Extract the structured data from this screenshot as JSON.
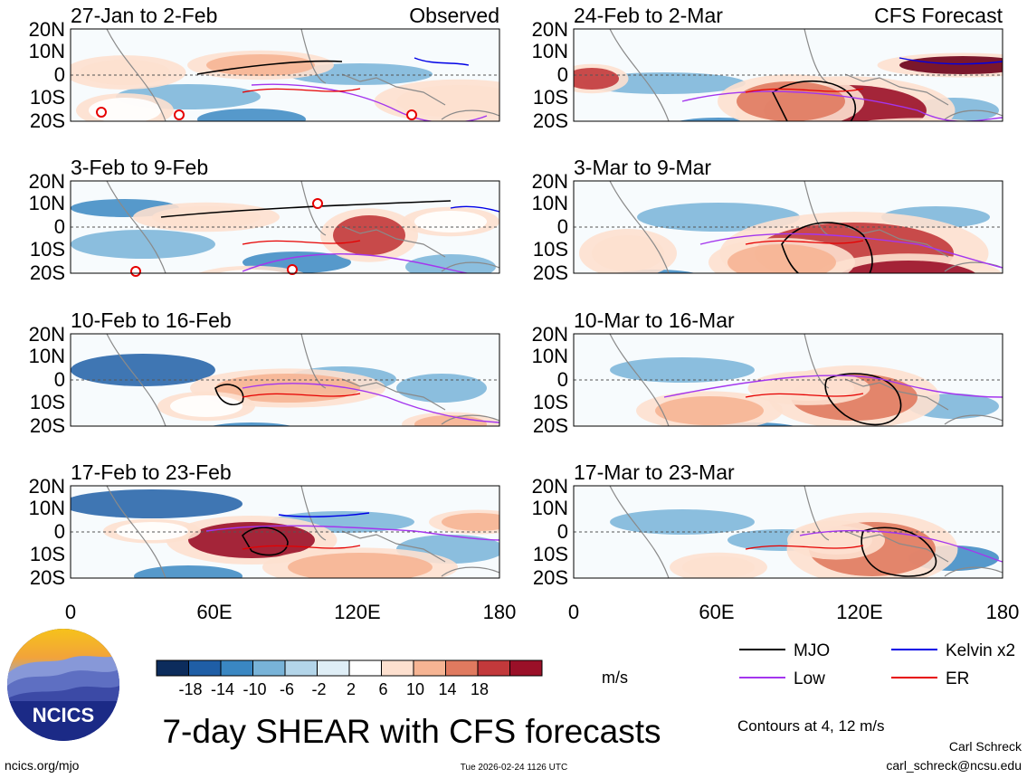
{
  "chart_data": {
    "type": "heatmap",
    "title": "7-day SHEAR with CFS forecasts",
    "units": "m/s",
    "contour_note": "Contours at 4, 12 m/s",
    "lat_ticks": [
      "20N",
      "10N",
      "0",
      "10S",
      "20S"
    ],
    "lon_ticks": [
      "0",
      "60E",
      "120E",
      "180"
    ],
    "lon_range": [
      0,
      180
    ],
    "lat_range": [
      -20,
      20
    ],
    "colorbar": {
      "ticks": [
        "-18",
        "-14",
        "-10",
        "-6",
        "-2",
        "2",
        "6",
        "10",
        "14",
        "18"
      ],
      "colors": [
        "#0c2c5c",
        "#1f5ea6",
        "#3a87c2",
        "#78b3d8",
        "#b3d5e9",
        "#dfeef6",
        "#ffffff",
        "#fde0cf",
        "#f6b493",
        "#e07a5f",
        "#c2393b",
        "#9a1028",
        "#6b0019"
      ]
    },
    "legend": [
      {
        "label": "MJO",
        "color": "#000000"
      },
      {
        "label": "Kelvin x2",
        "color": "#0000e6"
      },
      {
        "label": "Low",
        "color": "#a436ee"
      },
      {
        "label": "ER",
        "color": "#e60000"
      }
    ],
    "panels": [
      {
        "period": "27-Jan to 2-Feb",
        "tag": "Observed"
      },
      {
        "period": "24-Feb to 2-Mar",
        "tag": "CFS Forecast"
      },
      {
        "period": "3-Feb to 9-Feb",
        "tag": ""
      },
      {
        "period": "3-Mar to 9-Mar",
        "tag": ""
      },
      {
        "period": "10-Feb to 16-Feb",
        "tag": ""
      },
      {
        "period": "10-Mar to 16-Mar",
        "tag": ""
      },
      {
        "period": "17-Feb to 23-Feb",
        "tag": ""
      },
      {
        "period": "17-Mar to 23-Mar",
        "tag": ""
      }
    ]
  },
  "footer": {
    "logo_text": "NCICS",
    "url": "ncics.org/mjo",
    "timestamp": "Tue 2026-02-24 1126 UTC",
    "author": "Carl Schreck",
    "email": "carl_schreck@ncsu.edu"
  }
}
